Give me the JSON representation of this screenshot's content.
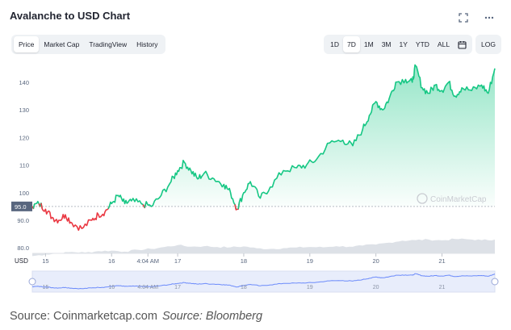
{
  "header": {
    "title": "Avalanche to USD Chart"
  },
  "toolbar": {
    "view_tabs": [
      "Price",
      "Market Cap",
      "TradingView",
      "History"
    ],
    "active_view": "Price",
    "ranges": [
      "1D",
      "7D",
      "1M",
      "3M",
      "1Y",
      "YTD",
      "ALL"
    ],
    "active_range": "7D",
    "log_label": "LOG",
    "icons": [
      "fullscreen-icon",
      "more-icon",
      "calendar-icon"
    ]
  },
  "chart_data": {
    "type": "line",
    "title": "Avalanche to USD Chart",
    "currency_label": "USD",
    "y_ticks": [
      "140",
      "130",
      "120",
      "110",
      "100",
      "90.0",
      "80.0"
    ],
    "ylim": [
      78,
      147
    ],
    "x_ticks": [
      "15",
      "16",
      "4:04 AM",
      "17",
      "18",
      "19",
      "20",
      "21"
    ],
    "reference_price": 95.0,
    "reference_label": "95.0",
    "watermark": "CoinMarketCap",
    "colors": {
      "up": "#16c784",
      "down": "#ea3943",
      "volume": "#dde1e7",
      "brush": "#3861fb"
    },
    "series": [
      {
        "x": [
          14.8,
          14.9,
          15.0,
          15.1,
          15.2,
          15.3,
          15.4,
          15.55,
          15.7,
          15.8,
          15.9,
          16.0,
          16.1,
          16.2,
          16.3,
          16.45,
          16.6,
          16.75,
          16.9,
          17.0,
          17.1,
          17.2,
          17.3,
          17.4,
          17.55,
          17.7,
          17.8,
          17.9,
          18.0,
          18.1,
          18.25,
          18.4,
          18.6,
          18.8,
          18.95,
          19.1,
          19.3,
          19.5,
          19.65,
          19.8,
          19.9,
          20.0,
          20.1,
          20.2,
          20.3,
          20.45,
          20.55,
          20.6,
          20.7,
          20.8,
          20.9,
          21.0,
          21.1,
          21.2,
          21.3,
          21.45,
          21.6,
          21.7,
          21.8
        ],
        "values": [
          95,
          96,
          94,
          91,
          90,
          92,
          89,
          87,
          90,
          92,
          93,
          96,
          99,
          96,
          97,
          96,
          95,
          99,
          104,
          108,
          111,
          108,
          105,
          107,
          105,
          103,
          100,
          94,
          100,
          104,
          98,
          102,
          108,
          109,
          110,
          112,
          118,
          119,
          117,
          123,
          128,
          133,
          130,
          134,
          140,
          141,
          140,
          146,
          138,
          136,
          139,
          137,
          140,
          135,
          138,
          137,
          139,
          136,
          145
        ]
      }
    ],
    "volume_series": {
      "x": [
        14.8,
        15.0,
        15.2,
        15.4,
        15.6,
        15.8,
        16.0,
        16.2,
        16.4,
        16.6,
        16.8,
        17.0,
        17.2,
        17.4,
        17.6,
        17.8,
        18.0,
        18.2,
        18.4,
        18.6,
        18.8,
        19.0,
        19.2,
        19.4,
        19.6,
        19.8,
        20.0,
        20.2,
        20.4,
        20.6,
        20.8,
        21.0,
        21.2,
        21.4,
        21.6,
        21.8
      ],
      "values": [
        77,
        77.6,
        78,
        78.5,
        78.3,
        78.8,
        79,
        78.6,
        79.3,
        79.6,
        80.3,
        81,
        80.4,
        80.6,
        80.3,
        80.2,
        80.5,
        79.8,
        79.6,
        79.9,
        80.1,
        80.3,
        80.2,
        80.6,
        80.4,
        80.8,
        81.2,
        81.9,
        82.6,
        82.8,
        83,
        82.7,
        83.2,
        83.1,
        82.8,
        83
      ]
    }
  },
  "footer": {
    "source1": "Source: Coinmarketcap.com",
    "source2": "Source: Bloomberg"
  }
}
